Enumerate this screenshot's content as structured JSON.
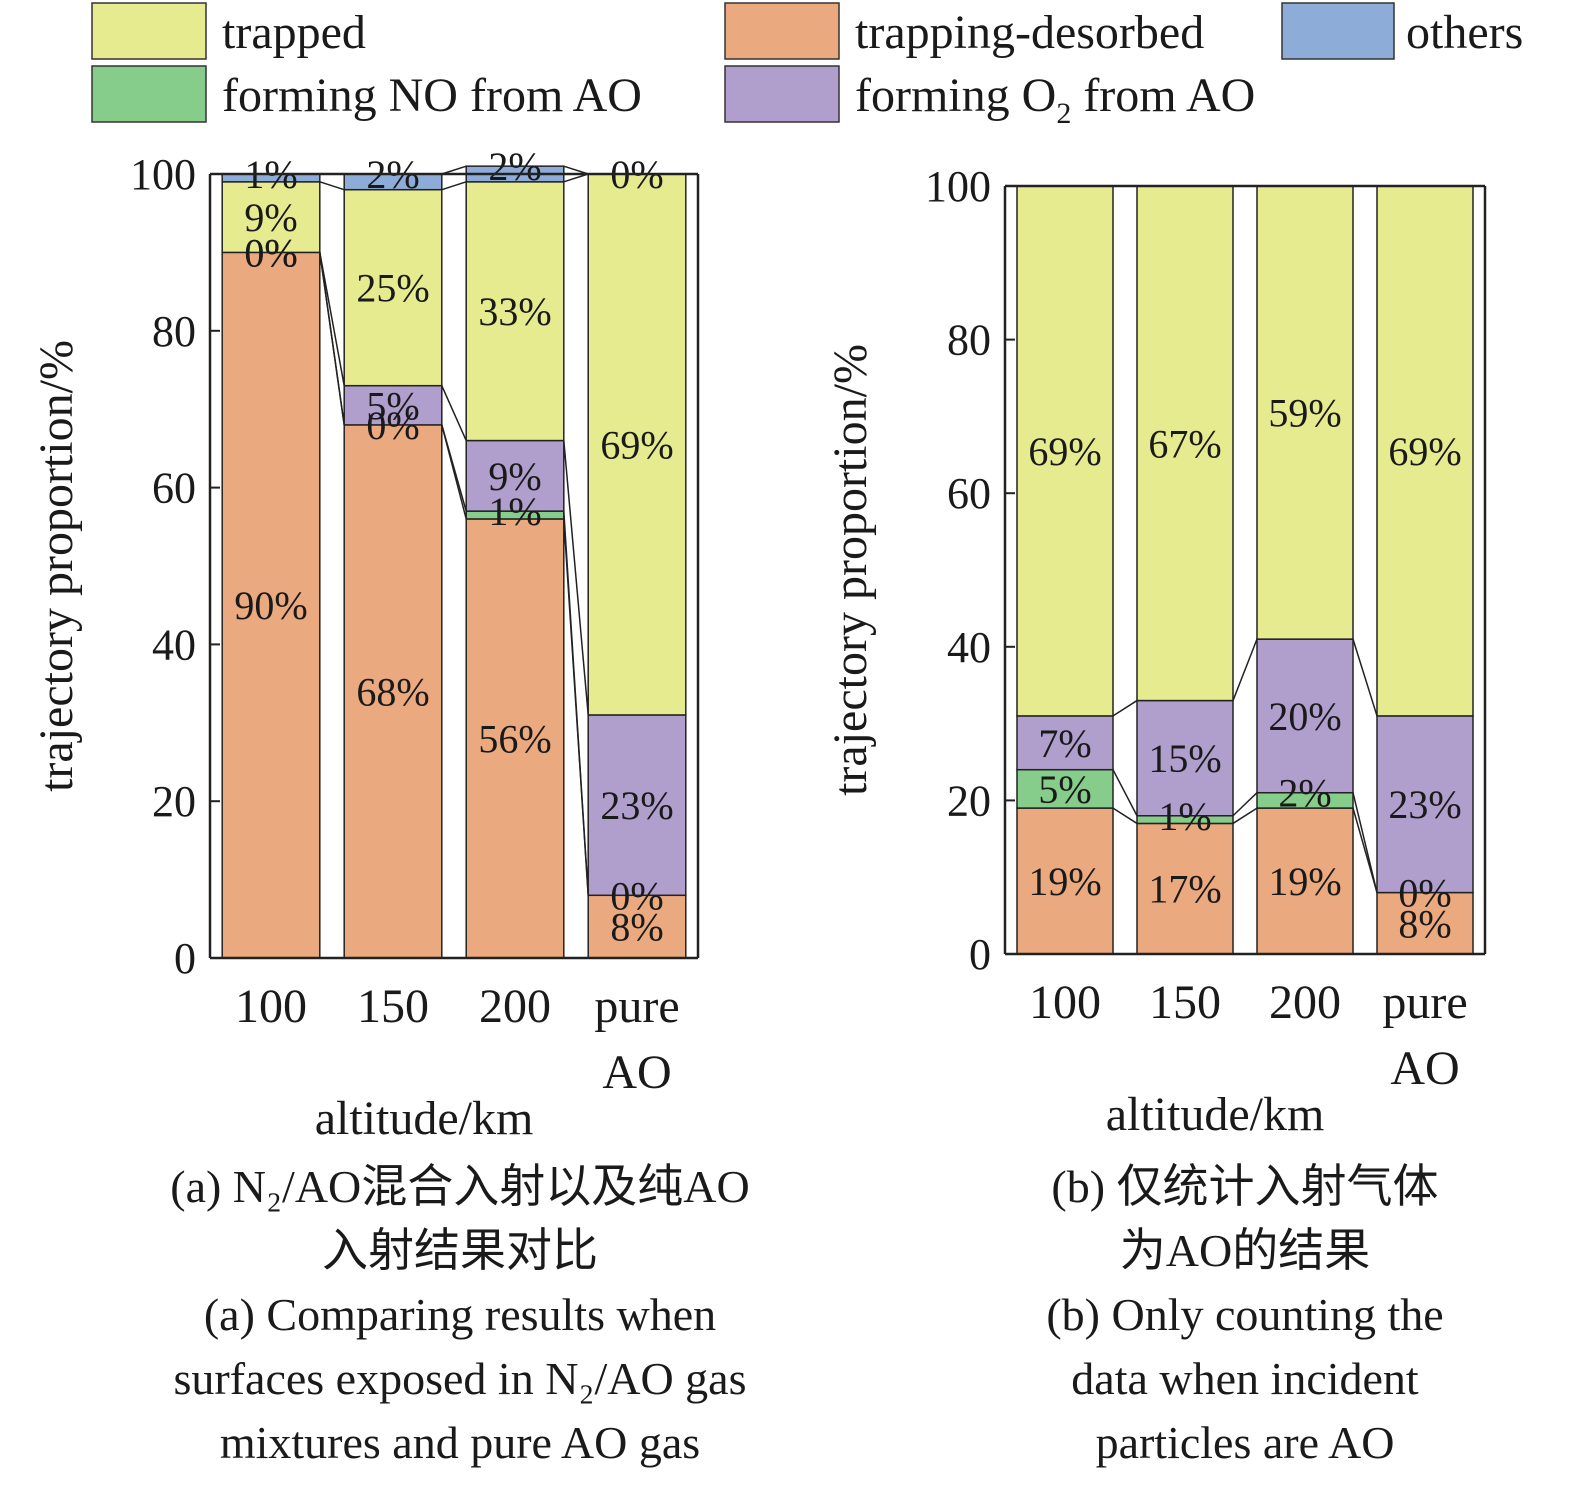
{
  "legend": {
    "items": [
      {
        "key": "trapped",
        "label": "trapped",
        "color": "#e6eb8f"
      },
      {
        "key": "trapping_desorbed",
        "label": "trapping-desorbed",
        "color": "#eaa97f"
      },
      {
        "key": "others",
        "label": "others",
        "color": "#8eacd8"
      },
      {
        "key": "forming_no",
        "label": "forming NO from AO",
        "color": "#86cc8a"
      },
      {
        "key": "forming_o2",
        "label_prefix": "forming O",
        "label_sub": "2",
        "label_suffix": " from AO",
        "color": "#b09fcd"
      }
    ]
  },
  "chart_data": [
    {
      "type": "bar",
      "stacked": true,
      "categories": [
        "100",
        "150",
        "200",
        "pure AO"
      ],
      "xlabel": "altitude/km",
      "ylabel": "trajectory proportion/%",
      "ylim": [
        0,
        100
      ],
      "yticks": [
        0,
        20,
        40,
        60,
        80,
        100
      ],
      "series": [
        {
          "name": "trapping-desorbed",
          "values": [
            90,
            68,
            56,
            8
          ],
          "labels": [
            "90%",
            "68%",
            "56%",
            "8%"
          ]
        },
        {
          "name": "forming NO from AO",
          "values": [
            0,
            0,
            1,
            0
          ],
          "labels": [
            "0%",
            "0%",
            "1%",
            "0%"
          ]
        },
        {
          "name": "forming O2 from AO",
          "values": [
            0,
            5,
            9,
            23
          ],
          "labels": [
            "0%",
            "5%",
            "9%",
            "23%"
          ]
        },
        {
          "name": "trapped",
          "values": [
            9,
            25,
            33,
            69
          ],
          "labels": [
            "9%",
            "25%",
            "33%",
            "69%"
          ]
        },
        {
          "name": "others",
          "values": [
            1,
            2,
            2,
            0
          ],
          "labels": [
            "1%",
            "2%",
            "2%",
            "0%"
          ]
        }
      ],
      "caption_cn": [
        "(a) N₂/AO混合入射以及纯AO",
        "入射结果对比"
      ],
      "caption_en": [
        "(a) Comparing results when",
        "surfaces exposed in N₂/AO gas",
        "mixtures and pure AO gas"
      ]
    },
    {
      "type": "bar",
      "stacked": true,
      "categories": [
        "100",
        "150",
        "200",
        "pure AO"
      ],
      "xlabel": "altitude/km",
      "ylabel": "trajectory proportion/%",
      "ylim": [
        0,
        100
      ],
      "yticks": [
        0,
        20,
        40,
        60,
        80,
        100
      ],
      "series": [
        {
          "name": "trapping-desorbed",
          "values": [
            19,
            17,
            19,
            8
          ],
          "labels": [
            "19%",
            "17%",
            "19%",
            "8%"
          ]
        },
        {
          "name": "forming NO from AO",
          "values": [
            5,
            1,
            2,
            0
          ],
          "labels": [
            "5%",
            "1%",
            "2%",
            "0%"
          ]
        },
        {
          "name": "forming O2 from AO",
          "values": [
            7,
            15,
            20,
            23
          ],
          "labels": [
            "7%",
            "15%",
            "20%",
            "23%"
          ]
        },
        {
          "name": "trapped",
          "values": [
            69,
            67,
            59,
            69
          ],
          "labels": [
            "69%",
            "67%",
            "59%",
            "69%"
          ]
        }
      ],
      "caption_cn": [
        "(b) 仅统计入射气体",
        "为AO的结果"
      ],
      "caption_en": [
        "(b) Only counting the",
        "data when incident",
        "particles are AO"
      ]
    }
  ]
}
